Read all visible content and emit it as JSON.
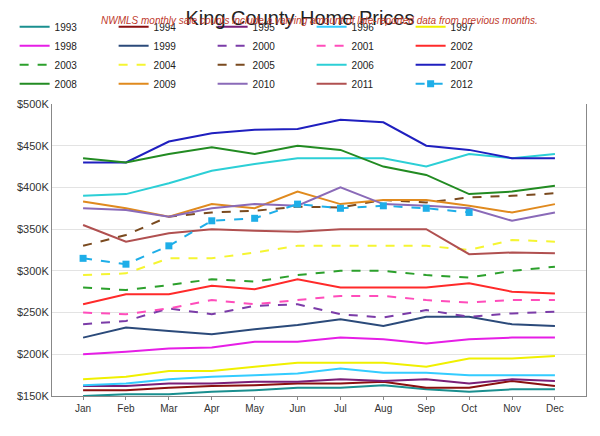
{
  "chart_data": {
    "type": "line",
    "title": "King County Home Prices",
    "subtitle": "NWMLS monthly sale counts include a varying amount of late-reported data from previous months.",
    "categories": [
      "Jan",
      "Feb",
      "Mar",
      "Apr",
      "May",
      "Jun",
      "Jul",
      "Aug",
      "Sep",
      "Oct",
      "Nov",
      "Dec"
    ],
    "ylim": [
      150000,
      500000
    ],
    "yticks": [
      {
        "value": 150000,
        "label": "$150K"
      },
      {
        "value": 200000,
        "label": "$200K"
      },
      {
        "value": 250000,
        "label": "$250K"
      },
      {
        "value": 300000,
        "label": "$300K"
      },
      {
        "value": 350000,
        "label": "$350K"
      },
      {
        "value": 400000,
        "label": "$400K"
      },
      {
        "value": 450000,
        "label": "$450K"
      },
      {
        "value": 500000,
        "label": "$500K"
      }
    ],
    "grid": true,
    "legend": "top",
    "series": [
      {
        "name": "1993",
        "color": "#1a8f8f",
        "line_style": "solid",
        "values": [
          150000,
          152000,
          152000,
          155000,
          157000,
          160000,
          160000,
          163000,
          158000,
          155000,
          158000,
          158000
        ]
      },
      {
        "name": "1994",
        "color": "#8b1010",
        "line_style": "solid",
        "values": [
          157000,
          157000,
          160000,
          162000,
          163000,
          165000,
          165000,
          167000,
          160000,
          160000,
          168000,
          162000
        ]
      },
      {
        "name": "1995",
        "color": "#7a1f78",
        "line_style": "solid",
        "values": [
          162000,
          162000,
          165000,
          165000,
          167000,
          167000,
          170000,
          168000,
          170000,
          165000,
          170000,
          168000
        ]
      },
      {
        "name": "1996",
        "color": "#33ccff",
        "line_style": "solid",
        "values": [
          163000,
          165000,
          170000,
          173000,
          175000,
          177000,
          183000,
          178000,
          178000,
          175000,
          175000,
          175000
        ]
      },
      {
        "name": "1997",
        "color": "#f0f000",
        "line_style": "solid",
        "values": [
          170000,
          173000,
          180000,
          180000,
          185000,
          190000,
          190000,
          190000,
          185000,
          195000,
          195000,
          198000
        ]
      },
      {
        "name": "1998",
        "color": "#e61ee6",
        "line_style": "solid",
        "values": [
          200000,
          203000,
          207000,
          208000,
          215000,
          215000,
          220000,
          218000,
          213000,
          218000,
          220000,
          220000
        ]
      },
      {
        "name": "1999",
        "color": "#2b4a7a",
        "line_style": "solid",
        "values": [
          220000,
          232000,
          228000,
          224000,
          230000,
          235000,
          242000,
          234000,
          245000,
          245000,
          236000,
          234000
        ]
      },
      {
        "name": "2000",
        "color": "#7b3ca8",
        "line_style": "dashed",
        "values": [
          236000,
          240000,
          255000,
          248000,
          258000,
          260000,
          248000,
          244000,
          253000,
          245000,
          249000,
          251000
        ]
      },
      {
        "name": "2001",
        "color": "#ff4dbb",
        "line_style": "dashed",
        "values": [
          250000,
          248000,
          255000,
          265000,
          260000,
          265000,
          270000,
          270000,
          265000,
          262000,
          265000,
          265000
        ]
      },
      {
        "name": "2002",
        "color": "#ff2a2a",
        "line_style": "solid",
        "values": [
          260000,
          272000,
          272000,
          282000,
          278000,
          290000,
          280000,
          280000,
          280000,
          285000,
          275000,
          273000
        ]
      },
      {
        "name": "2003",
        "color": "#2ca02c",
        "line_style": "dashed",
        "values": [
          280000,
          277000,
          283000,
          290000,
          287000,
          295000,
          300000,
          300000,
          295000,
          292000,
          300000,
          305000
        ]
      },
      {
        "name": "2004",
        "color": "#f5f532",
        "line_style": "dashed",
        "values": [
          295000,
          297000,
          315000,
          315000,
          322000,
          330000,
          330000,
          330000,
          330000,
          325000,
          337000,
          335000
        ]
      },
      {
        "name": "2005",
        "color": "#7a4a1f",
        "line_style": "dashed",
        "values": [
          330000,
          343000,
          365000,
          370000,
          372000,
          377000,
          376000,
          385000,
          382000,
          388000,
          390000,
          393000
        ]
      },
      {
        "name": "2006",
        "color": "#2ccfd6",
        "line_style": "solid",
        "values": [
          390000,
          392000,
          405000,
          420000,
          428000,
          435000,
          435000,
          435000,
          425000,
          440000,
          435000,
          440000
        ]
      },
      {
        "name": "2007",
        "color": "#1f1fbf",
        "line_style": "solid",
        "values": [
          430000,
          430000,
          455000,
          465000,
          469000,
          470000,
          481000,
          478000,
          450000,
          445000,
          435000,
          435000
        ]
      },
      {
        "name": "2008",
        "color": "#228b22",
        "line_style": "solid",
        "values": [
          435000,
          430000,
          440000,
          448000,
          440000,
          450000,
          445000,
          425000,
          415000,
          392000,
          395000,
          402000
        ]
      },
      {
        "name": "2009",
        "color": "#e08a1e",
        "line_style": "solid",
        "values": [
          383000,
          375000,
          365000,
          380000,
          375000,
          395000,
          380000,
          385000,
          385000,
          378000,
          370000,
          380000
        ]
      },
      {
        "name": "2010",
        "color": "#8a6ab8",
        "line_style": "solid",
        "values": [
          375000,
          373000,
          365000,
          375000,
          380000,
          378000,
          400000,
          380000,
          378000,
          375000,
          360000,
          370000
        ]
      },
      {
        "name": "2011",
        "color": "#b05050",
        "line_style": "solid",
        "values": [
          355000,
          335000,
          345000,
          350000,
          348000,
          347000,
          350000,
          350000,
          350000,
          320000,
          322000,
          321000
        ]
      },
      {
        "name": "2012",
        "color": "#1eaee8",
        "line_style": "dashed",
        "marker": "square",
        "values": [
          315000,
          308000,
          330000,
          360000,
          363000,
          380000,
          375000,
          378000,
          375000,
          370000,
          null,
          null
        ]
      }
    ]
  }
}
